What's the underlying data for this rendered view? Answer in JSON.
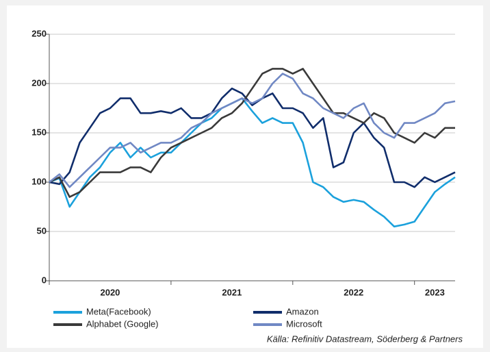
{
  "chart_data": {
    "type": "line",
    "x": [
      0,
      1,
      2,
      3,
      4,
      5,
      6,
      7,
      8,
      9,
      10,
      11,
      12,
      13,
      14,
      15,
      16,
      17,
      18,
      19,
      20,
      21,
      22,
      23,
      24,
      25,
      26,
      27,
      28,
      29,
      30,
      31,
      32,
      33,
      34,
      35,
      36,
      37,
      38,
      39,
      40
    ],
    "xlim": [
      0,
      40
    ],
    "xticks": [
      0,
      12,
      24,
      36
    ],
    "year_labels": [
      "2020",
      "2021",
      "2022",
      "2023"
    ],
    "ylim": [
      0,
      250
    ],
    "yticks": [
      0,
      50,
      100,
      150,
      200,
      250
    ],
    "grid": true,
    "series": [
      {
        "name": "Meta(Facebook)",
        "color": "#1ba1dc",
        "values": [
          100,
          104,
          75,
          90,
          105,
          115,
          130,
          140,
          125,
          135,
          125,
          130,
          130,
          140,
          150,
          160,
          165,
          175,
          180,
          185,
          172,
          160,
          165,
          160,
          160,
          140,
          100,
          95,
          85,
          80,
          82,
          80,
          72,
          65,
          55,
          57,
          60,
          75,
          90,
          98,
          105
        ]
      },
      {
        "name": "Amazon",
        "color": "#102d6b",
        "values": [
          100,
          98,
          110,
          140,
          155,
          170,
          175,
          185,
          185,
          170,
          170,
          172,
          170,
          175,
          165,
          165,
          170,
          185,
          195,
          190,
          178,
          185,
          190,
          175,
          175,
          170,
          155,
          165,
          115,
          120,
          150,
          160,
          145,
          135,
          100,
          100,
          95,
          105,
          100,
          105,
          110
        ]
      },
      {
        "name": "Alphabet (Google)",
        "color": "#3a3a3a",
        "values": [
          100,
          105,
          85,
          90,
          100,
          110,
          110,
          110,
          115,
          115,
          110,
          125,
          135,
          140,
          145,
          150,
          155,
          165,
          170,
          180,
          195,
          210,
          215,
          215,
          210,
          215,
          200,
          185,
          170,
          170,
          165,
          160,
          170,
          165,
          150,
          145,
          140,
          150,
          145,
          155,
          155
        ]
      },
      {
        "name": "Microsoft",
        "color": "#7088c4",
        "values": [
          100,
          108,
          95,
          105,
          115,
          125,
          135,
          135,
          140,
          130,
          135,
          140,
          140,
          145,
          155,
          160,
          170,
          175,
          180,
          185,
          180,
          185,
          200,
          210,
          205,
          190,
          185,
          175,
          170,
          165,
          175,
          180,
          160,
          150,
          145,
          160,
          160,
          165,
          170,
          180,
          182
        ]
      }
    ],
    "source": "Källa: Refinitiv Datastream, Söderberg & Partners"
  }
}
